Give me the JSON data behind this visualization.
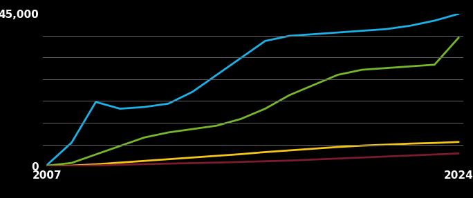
{
  "years": [
    2007,
    2008,
    2009,
    2010,
    2011,
    2012,
    2013,
    2014,
    2015,
    2016,
    2017,
    2018,
    2019,
    2020,
    2021,
    2022,
    2023,
    2024
  ],
  "blue": [
    500,
    7000,
    19000,
    17000,
    17500,
    18500,
    22000,
    27000,
    32000,
    37000,
    38500,
    39000,
    39500,
    40000,
    40500,
    41500,
    43000,
    45000
  ],
  "green": [
    200,
    1000,
    3500,
    6000,
    8500,
    10000,
    11000,
    12000,
    14000,
    17000,
    21000,
    24000,
    27000,
    28500,
    29000,
    29500,
    30000,
    38000
  ],
  "yellow": [
    0,
    200,
    600,
    1100,
    1600,
    2100,
    2600,
    3100,
    3600,
    4200,
    4700,
    5200,
    5700,
    6100,
    6400,
    6700,
    6900,
    7200
  ],
  "maroon": [
    0,
    100,
    250,
    450,
    650,
    800,
    950,
    1100,
    1300,
    1500,
    1700,
    2000,
    2300,
    2600,
    2900,
    3200,
    3500,
    3800
  ],
  "line_colors": [
    "#1ab2e8",
    "#76b82a",
    "#f5c518",
    "#7b1c2e"
  ],
  "line_width": 2.0,
  "background_color": "#000000",
  "text_color": "#ffffff",
  "grid_color": "#666666",
  "grid_linewidth": 0.7,
  "ylim": [
    0,
    45000
  ],
  "ytick_positions": [
    0,
    45000
  ],
  "ytick_labels": [
    "0",
    "45,000"
  ],
  "xlim_start": 2007,
  "xlim_end": 2024,
  "xtick_labels": [
    "2007",
    "2024"
  ],
  "n_gridlines": 8,
  "fontsize": 11
}
